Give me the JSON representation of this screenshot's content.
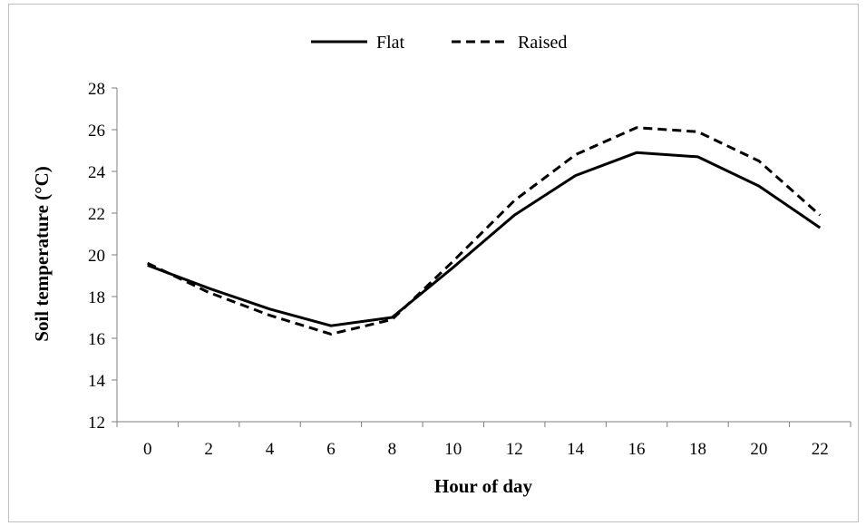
{
  "chart_data": {
    "type": "line",
    "title": "",
    "xlabel": "Hour of day",
    "ylabel": "Soil temperature (°C)",
    "x": [
      0,
      2,
      4,
      6,
      8,
      10,
      12,
      14,
      16,
      18,
      20,
      22
    ],
    "x_tick_labels": [
      "0",
      "2",
      "4",
      "6",
      "8",
      "10",
      "12",
      "14",
      "16",
      "18",
      "20",
      "22"
    ],
    "ylim": [
      12,
      28
    ],
    "y_ticks": [
      12,
      14,
      16,
      18,
      20,
      22,
      24,
      26,
      28
    ],
    "y_tick_labels": [
      "12",
      "14",
      "16",
      "18",
      "20",
      "22",
      "24",
      "26",
      "28"
    ],
    "grid": false,
    "legend_position": "top-center",
    "series": [
      {
        "name": "Flat",
        "style": "solid",
        "color": "#000000",
        "values": [
          19.5,
          18.4,
          17.4,
          16.6,
          17.0,
          19.4,
          21.9,
          23.8,
          24.9,
          24.7,
          23.3,
          21.3
        ]
      },
      {
        "name": "Raised",
        "style": "dashed",
        "color": "#000000",
        "values": [
          19.6,
          18.2,
          17.1,
          16.2,
          16.9,
          19.7,
          22.6,
          24.8,
          26.1,
          25.9,
          24.5,
          21.9
        ]
      }
    ]
  }
}
